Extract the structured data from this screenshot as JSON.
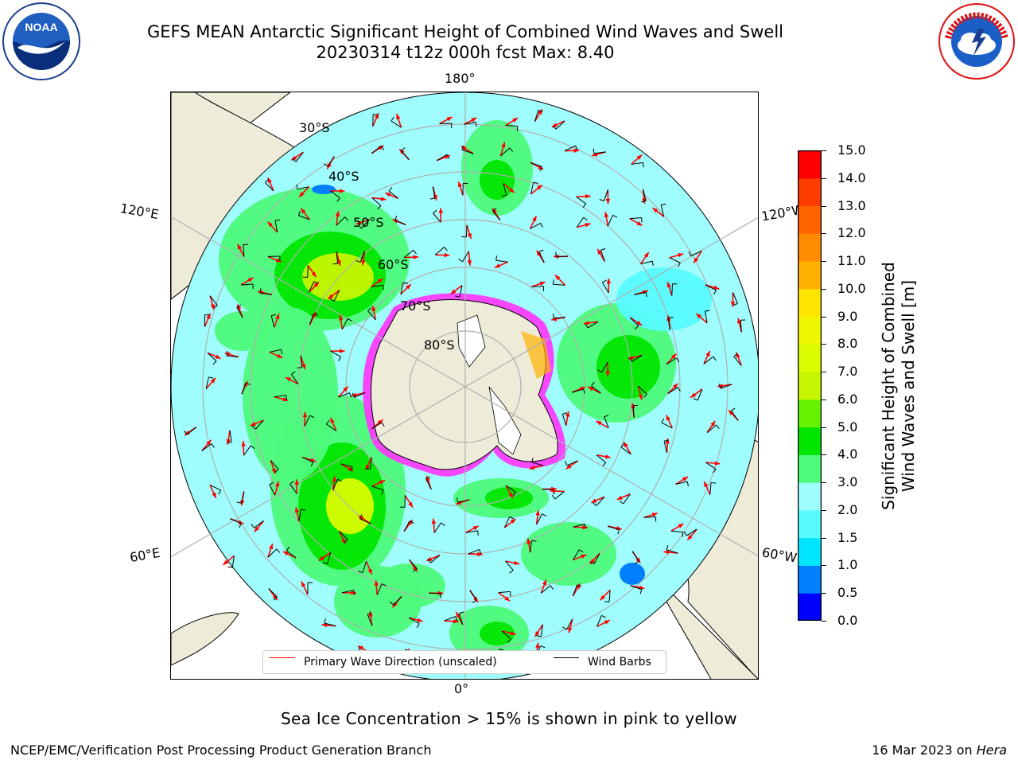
{
  "title": {
    "line1": "GEFS MEAN Antarctic Significant Height of Combined Wind Waves and Swell",
    "line2": "20230314 t12z 000h fcst   Max: 8.40"
  },
  "logos": {
    "left": "noaa-logo",
    "right": "nws-logo"
  },
  "map": {
    "projection": "south-polar-stereographic",
    "longitude_labels": {
      "top": "180°",
      "bottom": "0°",
      "upper_left": "120°E",
      "upper_right": "120°W",
      "lower_left": "60°E",
      "lower_right": "60°W"
    },
    "latitude_labels": [
      "30°S",
      "40°S",
      "50°S",
      "60°S",
      "70°S",
      "80°S"
    ],
    "latitude_circles": [
      -30,
      -40,
      -50,
      -60,
      -70,
      -80
    ],
    "meridians": [
      0,
      60,
      120,
      180,
      240,
      300
    ],
    "colors": {
      "ocean_low": "#9ffdfd",
      "land": "#efebd9",
      "sea_ice_edge": "#ff33ff",
      "wave_arrow": "#ff0000",
      "wind_barb": "#000000"
    }
  },
  "legend": {
    "wave_label": "Primary Wave Direction (unscaled)",
    "wave_color": "#ff0000",
    "barb_label": "Wind Barbs",
    "barb_color": "#000000"
  },
  "colorbar": {
    "label_line1": "Significant Height of Combined",
    "label_line2": "Wind Waves and Swell [m]",
    "ticks": [
      "0.0",
      "0.5",
      "1.0",
      "1.5",
      "2.0",
      "3.0",
      "4.0",
      "5.0",
      "6.0",
      "7.0",
      "8.0",
      "9.0",
      "10.0",
      "11.0",
      "12.0",
      "13.0",
      "14.0",
      "15.0"
    ],
    "colors": [
      "#0000ff",
      "#0080ff",
      "#00e5ff",
      "#57fbff",
      "#9ffdfd",
      "#4dfa7a",
      "#00e600",
      "#66f200",
      "#c6f500",
      "#d9fc00",
      "#f0f500",
      "#ffe600",
      "#ffb300",
      "#ff8c00",
      "#ff6400",
      "#ff3c00",
      "#ff0000"
    ]
  },
  "footer": {
    "note": "Sea Ice Concentration > 15% is shown in pink to yellow",
    "credit_left": "NCEP/EMC/Verification Post Processing Product Generation Branch",
    "credit_right_prefix": "16 Mar 2023 on ",
    "credit_right_host": "Hera"
  }
}
